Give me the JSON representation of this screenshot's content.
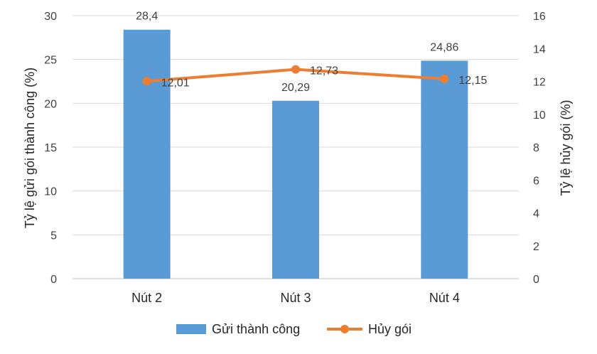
{
  "chart_data": {
    "type": "bar",
    "categories": [
      "Nút 2",
      "Nút 3",
      "Nút 4"
    ],
    "series": [
      {
        "name": "Gửi thành công",
        "type": "bar",
        "axis": "left",
        "values": [
          28.4,
          20.29,
          24.86
        ],
        "labels": [
          "28,4",
          "20,29",
          "24,86"
        ],
        "color": "#5B9BD5"
      },
      {
        "name": "Hủy gói",
        "type": "line",
        "axis": "right",
        "values": [
          12.01,
          12.73,
          12.15
        ],
        "labels": [
          "12,01",
          "12,73",
          "12,15"
        ],
        "color": "#ED7D31"
      }
    ],
    "ylabel": "Tỷ lệ gửi gói thành công (%)",
    "y2label": "Tỷ lệ hủy gói (%)",
    "ylim": [
      0,
      30
    ],
    "y2lim": [
      0,
      16
    ],
    "yticks": [
      0,
      5,
      10,
      15,
      20,
      25,
      30
    ],
    "y2ticks": [
      0,
      2,
      4,
      6,
      8,
      10,
      12,
      14,
      16
    ],
    "grid": true,
    "legend": "bottom"
  }
}
